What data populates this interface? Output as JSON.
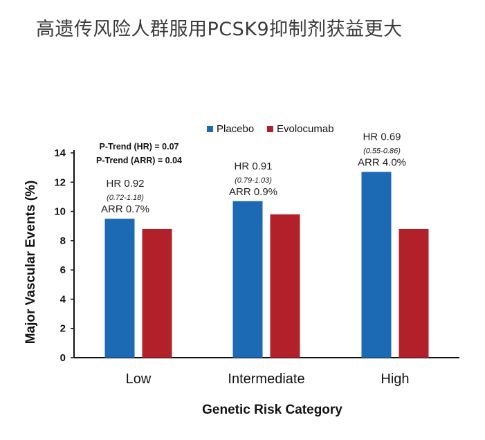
{
  "headline": "高遗传风险人群服用PCSK9抑制剂获益更大",
  "colors": {
    "placebo": "#1b6ab3",
    "evolocumab": "#b22029"
  },
  "chart_data": {
    "type": "bar",
    "categories": [
      "Low",
      "Intermediate",
      "High"
    ],
    "series": [
      {
        "name": "Placebo",
        "values": [
          9.5,
          10.7,
          12.7
        ]
      },
      {
        "name": "Evolocumab",
        "values": [
          8.8,
          9.8,
          8.8
        ]
      }
    ],
    "xlabel": "Genetic Risk Category",
    "ylabel": "Major Vascular Events (%)",
    "ylim": [
      0,
      14
    ],
    "yticks": [
      "0",
      "2",
      "4",
      "6",
      "8",
      "10",
      "12",
      "14"
    ],
    "grid": false,
    "legend_position": "top",
    "annotations": [
      {
        "hr": "HR 0.92",
        "ci": "(0.72-1.18)",
        "arr": "ARR 0.7%"
      },
      {
        "hr": "HR 0.91",
        "ci": "(0.79-1.03)",
        "arr": "ARR 0.9%"
      },
      {
        "hr": "HR 0.69",
        "ci": "(0.55-0.86)",
        "arr": "ARR 4.0%"
      }
    ],
    "p_trend": [
      "P-Trend (HR) = 0.07",
      "P-Trend (ARR) = 0.04"
    ]
  }
}
